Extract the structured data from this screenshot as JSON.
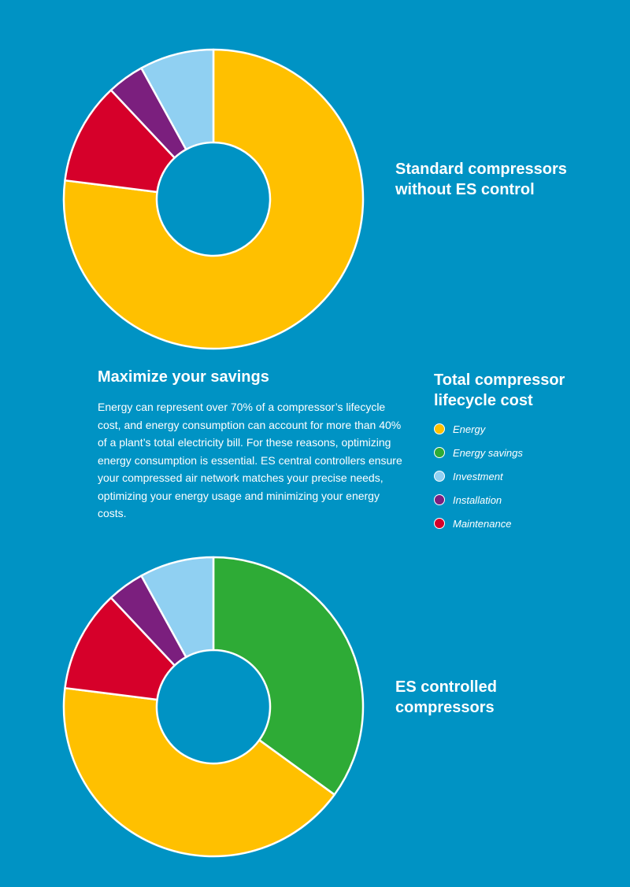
{
  "colors": {
    "background": "#0093C4",
    "energy": "#FFC000",
    "energy_savings": "#2EAB36",
    "investment": "#90D0F2",
    "installation": "#7B1F7E",
    "maintenance": "#D6002A"
  },
  "chart_data": [
    {
      "type": "pie",
      "donut": true,
      "title": "Standard compressors\nwithout ES control",
      "slices": [
        {
          "name": "Energy",
          "value": 77,
          "color": "#FFC000"
        },
        {
          "name": "Maintenance",
          "value": 11,
          "color": "#D6002A"
        },
        {
          "name": "Installation",
          "value": 4,
          "color": "#7B1F7E"
        },
        {
          "name": "Investment",
          "value": 8,
          "color": "#90D0F2"
        }
      ]
    },
    {
      "type": "pie",
      "donut": true,
      "title": "ES controlled\ncompressors",
      "slices": [
        {
          "name": "Energy savings",
          "value": 35,
          "color": "#2EAB36"
        },
        {
          "name": "Energy",
          "value": 42,
          "color": "#FFC000"
        },
        {
          "name": "Maintenance",
          "value": 11,
          "color": "#D6002A"
        },
        {
          "name": "Installation",
          "value": 4,
          "color": "#7B1F7E"
        },
        {
          "name": "Investment",
          "value": 8,
          "color": "#90D0F2"
        }
      ]
    }
  ],
  "section": {
    "heading": "Maximize your savings",
    "body": "Energy can represent over 70% of a compressor’s lifecycle cost, and energy consumption can account for more than 40% of a plant’s total electricity bill. For these reasons, optimizing energy consumption is essential. ES central controllers ensure your compressed air network matches your precise needs, optimizing your energy usage and minimizing your energy costs."
  },
  "legend": {
    "title": "Total compressor\nlifecycle cost",
    "items": [
      {
        "label": "Energy",
        "color": "#FFC000"
      },
      {
        "label": "Energy savings",
        "color": "#2EAB36"
      },
      {
        "label": "Investment",
        "color": "#90D0F2"
      },
      {
        "label": "Installation",
        "color": "#7B1F7E"
      },
      {
        "label": "Maintenance",
        "color": "#D6002A"
      }
    ]
  }
}
